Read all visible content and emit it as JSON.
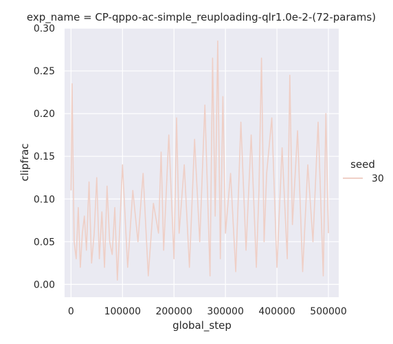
{
  "chart_data": {
    "type": "line",
    "title": "exp_name = CP-qppo-ac-simple_reuploading-qlr1.0e-2-(72-params)",
    "xlabel": "global_step",
    "ylabel": "clipfrac",
    "xlim": [
      -12500,
      520000
    ],
    "ylim": [
      -0.015,
      0.3
    ],
    "xticks": [
      0,
      100000,
      200000,
      300000,
      400000,
      500000
    ],
    "xtick_labels": [
      "0",
      "100000",
      "200000",
      "300000",
      "400000",
      "500000"
    ],
    "yticks": [
      0.0,
      0.05,
      0.1,
      0.15,
      0.2,
      0.25,
      0.3
    ],
    "ytick_labels": [
      "0.00",
      "0.05",
      "0.10",
      "0.15",
      "0.20",
      "0.25",
      "0.30"
    ],
    "grid": true,
    "legend": {
      "title": "seed",
      "position": "right"
    },
    "series": [
      {
        "name": "30",
        "color": "#efcfc6",
        "x": [
          0,
          2000,
          4000,
          6000,
          10000,
          14000,
          18000,
          22000,
          26000,
          30000,
          35000,
          40000,
          45000,
          50000,
          55000,
          60000,
          65000,
          70000,
          75000,
          80000,
          85000,
          90000,
          95000,
          100000,
          110000,
          120000,
          130000,
          140000,
          150000,
          160000,
          170000,
          175000,
          180000,
          190000,
          200000,
          205000,
          210000,
          220000,
          230000,
          240000,
          250000,
          260000,
          270000,
          275000,
          280000,
          285000,
          290000,
          295000,
          300000,
          310000,
          320000,
          330000,
          340000,
          350000,
          360000,
          365000,
          370000,
          375000,
          380000,
          390000,
          400000,
          410000,
          420000,
          425000,
          430000,
          440000,
          450000,
          460000,
          470000,
          480000,
          490000,
          495000,
          500000
        ],
        "values": [
          0.11,
          0.235,
          0.14,
          0.05,
          0.03,
          0.09,
          0.02,
          0.06,
          0.08,
          0.04,
          0.12,
          0.025,
          0.06,
          0.125,
          0.03,
          0.085,
          0.02,
          0.115,
          0.05,
          0.035,
          0.09,
          0.005,
          0.07,
          0.14,
          0.02,
          0.11,
          0.05,
          0.13,
          0.01,
          0.095,
          0.06,
          0.155,
          0.04,
          0.175,
          0.03,
          0.195,
          0.06,
          0.14,
          0.02,
          0.17,
          0.05,
          0.21,
          0.01,
          0.265,
          0.08,
          0.285,
          0.03,
          0.22,
          0.06,
          0.13,
          0.015,
          0.19,
          0.04,
          0.175,
          0.02,
          0.11,
          0.265,
          0.05,
          0.13,
          0.195,
          0.02,
          0.16,
          0.03,
          0.245,
          0.07,
          0.18,
          0.015,
          0.14,
          0.05,
          0.19,
          0.01,
          0.2,
          0.06
        ]
      }
    ]
  }
}
